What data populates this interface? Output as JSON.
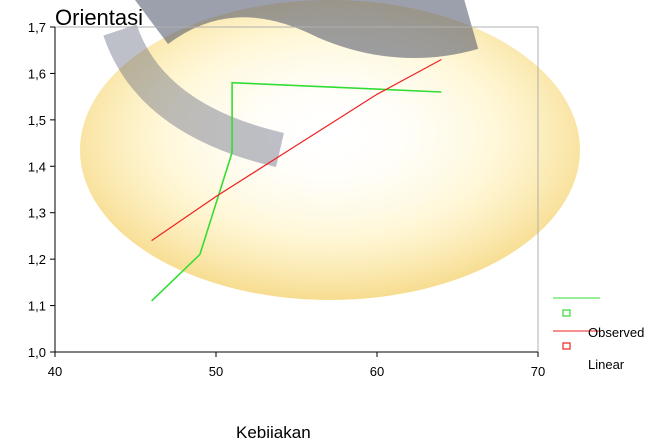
{
  "chart_data": {
    "type": "line",
    "title": "Orientasi",
    "xlabel": "Kebijakan",
    "ylabel": "",
    "xlim": [
      40,
      70
    ],
    "ylim": [
      1.0,
      1.7
    ],
    "x_ticks": [
      "40",
      "50",
      "60",
      "70"
    ],
    "y_ticks": [
      "1,0",
      "1,1",
      "1,2",
      "1,3",
      "1,4",
      "1,5",
      "1,6",
      "1,7"
    ],
    "grid": false,
    "legend_position": "right",
    "series": [
      {
        "name": "Observed",
        "color": "#33dd33",
        "x": [
          46,
          49,
          51,
          51,
          64
        ],
        "y": [
          1.11,
          1.21,
          1.43,
          1.58,
          1.56
        ]
      },
      {
        "name": "Linear",
        "color": "#ee2222",
        "x": [
          46,
          50,
          55,
          60,
          64
        ],
        "y": [
          1.24,
          1.335,
          1.445,
          1.555,
          1.63
        ]
      }
    ]
  }
}
